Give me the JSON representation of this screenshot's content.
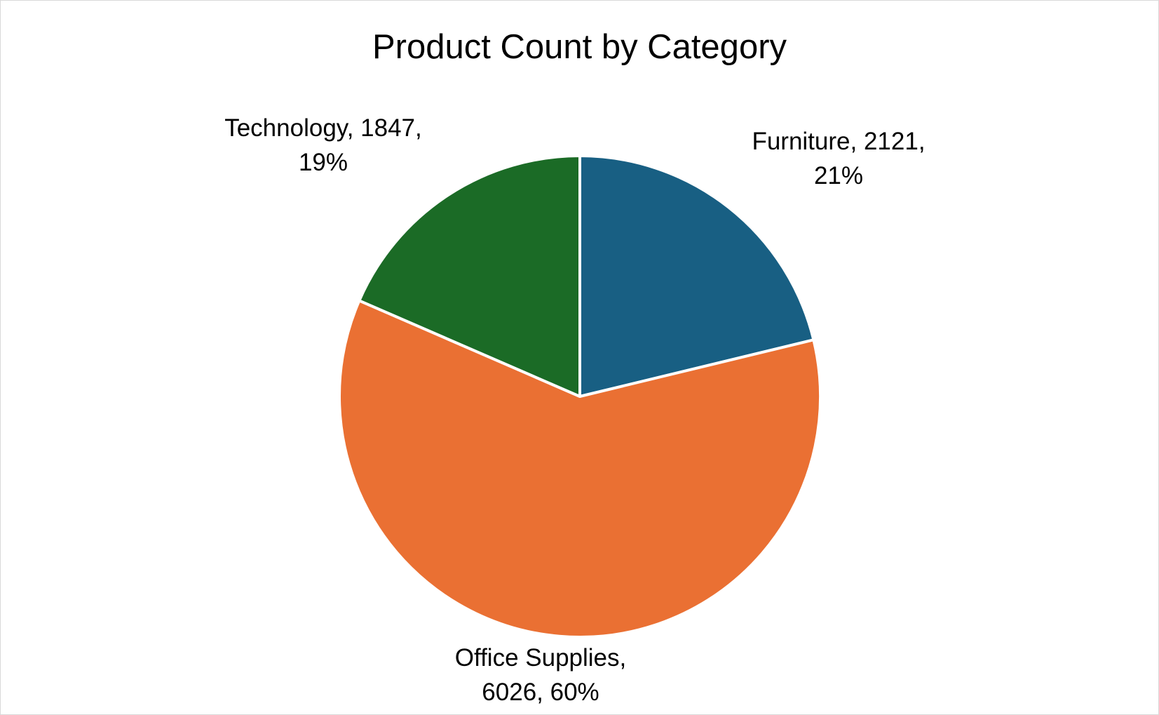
{
  "chart_data": {
    "type": "pie",
    "title": "Product Count by Category",
    "slices": [
      {
        "category": "Furniture",
        "value": 2121,
        "percent": "21%",
        "color": "#185f83"
      },
      {
        "category": "Office Supplies",
        "value": 6026,
        "percent": "60%",
        "color": "#ea7033"
      },
      {
        "category": "Technology",
        "value": 1847,
        "percent": "19%",
        "color": "#1b6b26"
      }
    ],
    "start_angle": "12 o'clock",
    "direction": "clockwise",
    "legend": "none",
    "data_labels": "category, value, percentage"
  }
}
